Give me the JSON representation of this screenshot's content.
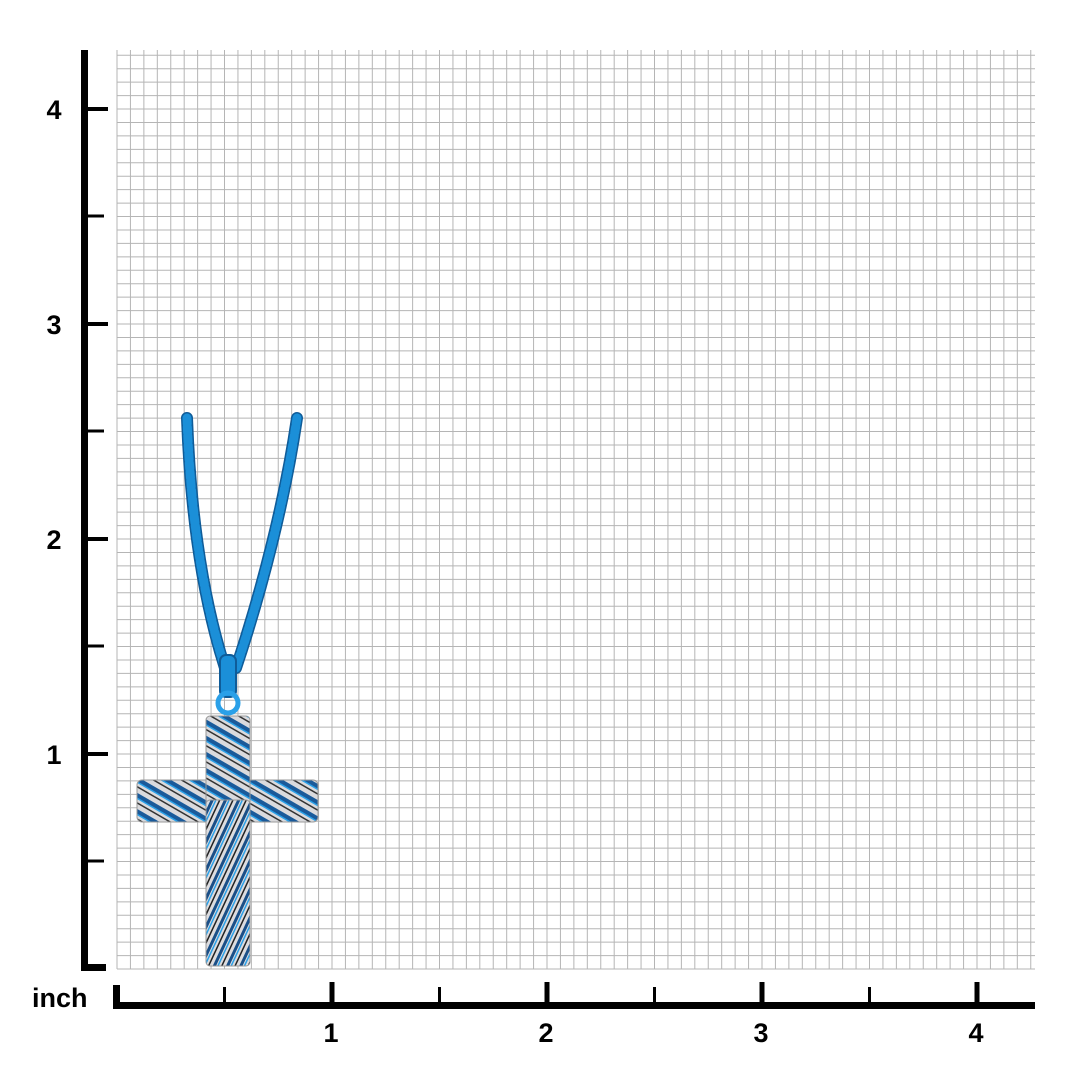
{
  "unit_label": "inch",
  "x_axis": {
    "ticks": [
      "1",
      "2",
      "3",
      "4"
    ]
  },
  "y_axis": {
    "ticks": [
      "1",
      "2",
      "3",
      "4"
    ]
  },
  "grid": {
    "subdivisions_per_inch": 16,
    "line_color": "#b5b5b5"
  },
  "product": {
    "name_icon": "cross-pendant-necklace",
    "chain_color": "#1b8fd8",
    "metal_color": "#d9d9dc",
    "stripe_color": "#1a5a9a"
  }
}
